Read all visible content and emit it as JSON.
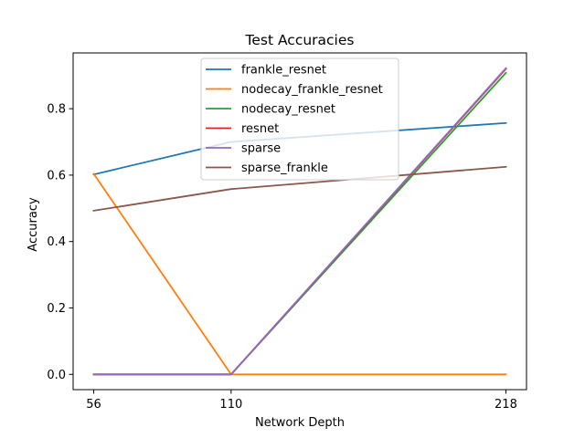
{
  "chart_data": {
    "type": "line",
    "title": "Test Accuracies",
    "xlabel": "Network Depth",
    "ylabel": "Accuracy",
    "x": [
      56,
      110,
      218
    ],
    "xticks": [
      "56",
      "110",
      "218"
    ],
    "yticks": [
      "0.0",
      "0.2",
      "0.4",
      "0.6",
      "0.8"
    ],
    "xlim": [
      47.9,
      226.1
    ],
    "ylim": [
      -0.046,
      0.968
    ],
    "grid": false,
    "legend_position": "upper center",
    "series": [
      {
        "name": "frankle_resnet",
        "color": "#1f77b4",
        "values": [
          0.602,
          0.7,
          0.757
        ]
      },
      {
        "name": "nodecay_frankle_resnet",
        "color": "#ff7f0e",
        "values": [
          0.604,
          0.0,
          0.0
        ]
      },
      {
        "name": "nodecay_resnet",
        "color": "#2ca02c",
        "values": [
          0.0,
          0.0,
          0.908
        ]
      },
      {
        "name": "resnet",
        "color": "#d62728",
        "values": [
          0.0,
          0.0,
          0.92
        ]
      },
      {
        "name": "sparse",
        "color": "#9467bd",
        "values": [
          0.0,
          0.0,
          0.922
        ]
      },
      {
        "name": "sparse_frankle",
        "color": "#8c564b",
        "values": [
          0.493,
          0.558,
          0.625
        ]
      }
    ]
  }
}
